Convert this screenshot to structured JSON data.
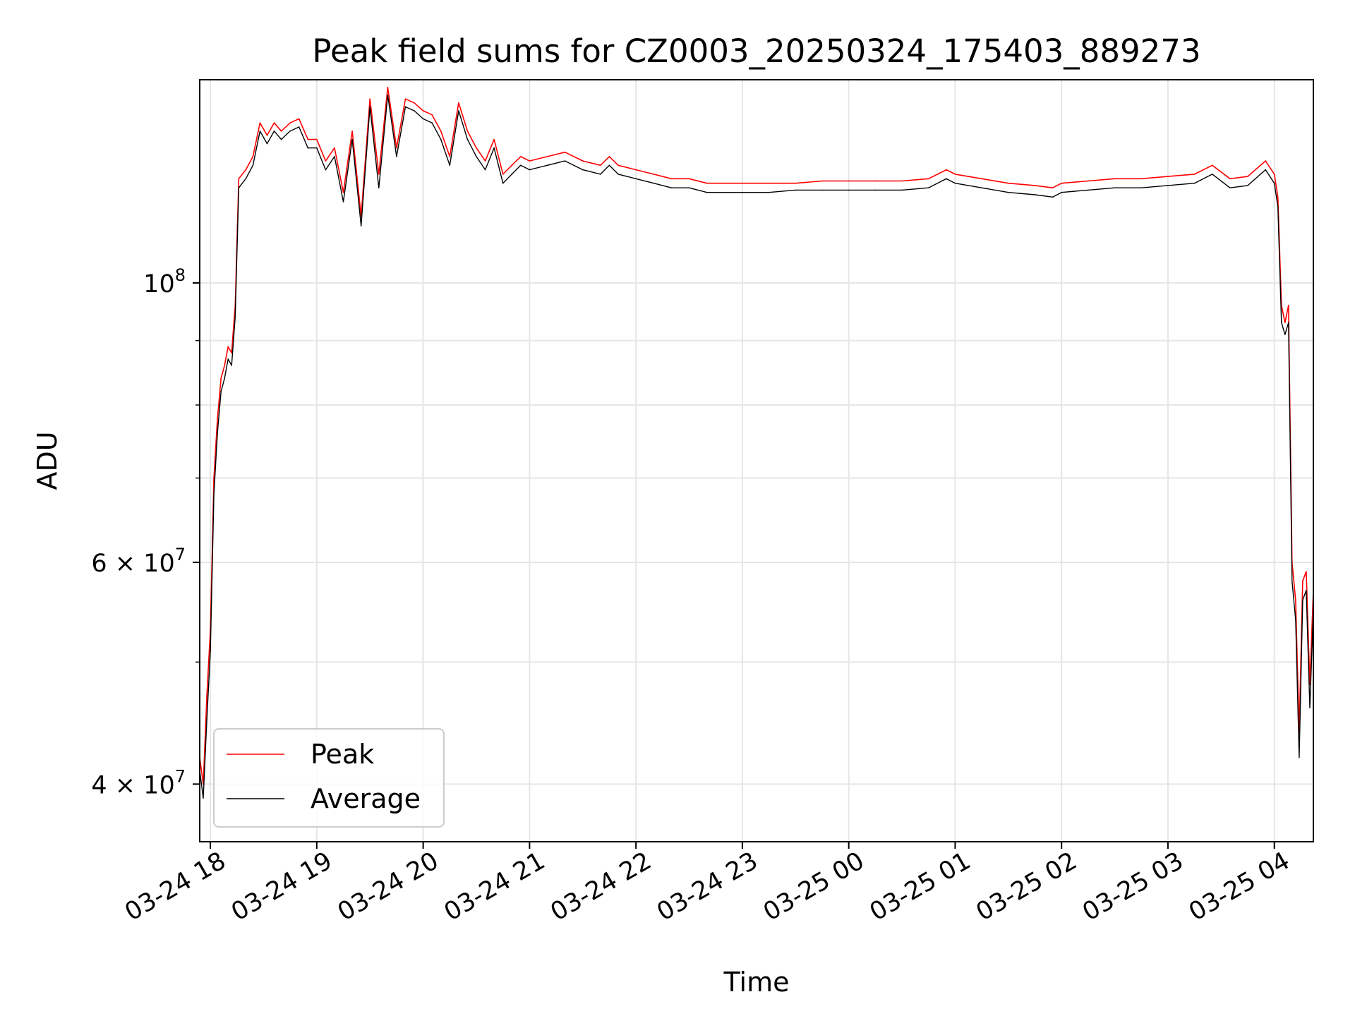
{
  "chart_data": {
    "type": "line",
    "title": "Peak field sums for CZ0003_20250324_175403_889273",
    "xlabel": "Time",
    "ylabel": "ADU",
    "yscale": "log",
    "ylim": [
      36000000,
      145000000
    ],
    "xlim": [
      "2025-03-24 17:54",
      "2025-03-25 04:22"
    ],
    "grid": true,
    "legend_position": "lower-left",
    "x_ticks": [
      {
        "time": "2025-03-24 18:00",
        "label": "03-24 18"
      },
      {
        "time": "2025-03-24 19:00",
        "label": "03-24 19"
      },
      {
        "time": "2025-03-24 20:00",
        "label": "03-24 20"
      },
      {
        "time": "2025-03-24 21:00",
        "label": "03-24 21"
      },
      {
        "time": "2025-03-24 22:00",
        "label": "03-24 22"
      },
      {
        "time": "2025-03-24 23:00",
        "label": "03-24 23"
      },
      {
        "time": "2025-03-25 00:00",
        "label": "03-25 00"
      },
      {
        "time": "2025-03-25 01:00",
        "label": "03-25 01"
      },
      {
        "time": "2025-03-25 02:00",
        "label": "03-25 02"
      },
      {
        "time": "2025-03-25 03:00",
        "label": "03-25 03"
      },
      {
        "time": "2025-03-25 04:00",
        "label": "03-25 04"
      }
    ],
    "y_ticks": [
      {
        "value": 40000000,
        "mantissa": "4",
        "exponent": "7",
        "times": "×",
        "base": "10"
      },
      {
        "value": 60000000,
        "mantissa": "6",
        "exponent": "7",
        "times": "×",
        "base": "10"
      },
      {
        "value": 100000000,
        "mantissa": "",
        "exponent": "8",
        "times": "",
        "base": "10"
      }
    ],
    "y_minor_ticks": [
      50000000,
      70000000,
      80000000,
      90000000
    ],
    "series": [
      {
        "name": "Peak",
        "color": "#ff0000",
        "points": [
          [
            "2025-03-24 17:54",
            42000000
          ],
          [
            "2025-03-24 17:56",
            40000000
          ],
          [
            "2025-03-24 17:58",
            47000000
          ],
          [
            "2025-03-24 18:00",
            53000000
          ],
          [
            "2025-03-24 18:02",
            70000000
          ],
          [
            "2025-03-24 18:04",
            78000000
          ],
          [
            "2025-03-24 18:06",
            84000000
          ],
          [
            "2025-03-24 18:08",
            86000000
          ],
          [
            "2025-03-24 18:10",
            89000000
          ],
          [
            "2025-03-24 18:12",
            88000000
          ],
          [
            "2025-03-24 18:14",
            96000000
          ],
          [
            "2025-03-24 18:16",
            121000000
          ],
          [
            "2025-03-24 18:20",
            123000000
          ],
          [
            "2025-03-24 18:24",
            126000000
          ],
          [
            "2025-03-24 18:28",
            134000000
          ],
          [
            "2025-03-24 18:32",
            131000000
          ],
          [
            "2025-03-24 18:36",
            134000000
          ],
          [
            "2025-03-24 18:40",
            132000000
          ],
          [
            "2025-03-24 18:45",
            134000000
          ],
          [
            "2025-03-24 18:50",
            135000000
          ],
          [
            "2025-03-24 18:55",
            130000000
          ],
          [
            "2025-03-24 19:00",
            130000000
          ],
          [
            "2025-03-24 19:05",
            125000000
          ],
          [
            "2025-03-24 19:10",
            128000000
          ],
          [
            "2025-03-24 19:15",
            118000000
          ],
          [
            "2025-03-24 19:20",
            132000000
          ],
          [
            "2025-03-24 19:25",
            113000000
          ],
          [
            "2025-03-24 19:30",
            140000000
          ],
          [
            "2025-03-24 19:35",
            122000000
          ],
          [
            "2025-03-24 19:40",
            143000000
          ],
          [
            "2025-03-24 19:45",
            128000000
          ],
          [
            "2025-03-24 19:50",
            140000000
          ],
          [
            "2025-03-24 19:55",
            139000000
          ],
          [
            "2025-03-24 20:00",
            137000000
          ],
          [
            "2025-03-24 20:05",
            136000000
          ],
          [
            "2025-03-24 20:10",
            132000000
          ],
          [
            "2025-03-24 20:15",
            126000000
          ],
          [
            "2025-03-24 20:20",
            139000000
          ],
          [
            "2025-03-24 20:25",
            132000000
          ],
          [
            "2025-03-24 20:30",
            128000000
          ],
          [
            "2025-03-24 20:35",
            125000000
          ],
          [
            "2025-03-24 20:40",
            130000000
          ],
          [
            "2025-03-24 20:45",
            122000000
          ],
          [
            "2025-03-24 20:50",
            124000000
          ],
          [
            "2025-03-24 20:55",
            126000000
          ],
          [
            "2025-03-24 21:00",
            125000000
          ],
          [
            "2025-03-24 21:10",
            126000000
          ],
          [
            "2025-03-24 21:20",
            127000000
          ],
          [
            "2025-03-24 21:30",
            125000000
          ],
          [
            "2025-03-24 21:40",
            124000000
          ],
          [
            "2025-03-24 21:45",
            126000000
          ],
          [
            "2025-03-24 21:50",
            124000000
          ],
          [
            "2025-03-24 22:00",
            123000000
          ],
          [
            "2025-03-24 22:10",
            122000000
          ],
          [
            "2025-03-24 22:20",
            121000000
          ],
          [
            "2025-03-24 22:30",
            121000000
          ],
          [
            "2025-03-24 22:40",
            120000000
          ],
          [
            "2025-03-24 22:50",
            120000000
          ],
          [
            "2025-03-24 23:00",
            120000000
          ],
          [
            "2025-03-24 23:15",
            120000000
          ],
          [
            "2025-03-24 23:30",
            120000000
          ],
          [
            "2025-03-24 23:45",
            120500000
          ],
          [
            "2025-03-25 00:00",
            120500000
          ],
          [
            "2025-03-25 00:15",
            120500000
          ],
          [
            "2025-03-25 00:30",
            120500000
          ],
          [
            "2025-03-25 00:45",
            121000000
          ],
          [
            "2025-03-25 00:55",
            123000000
          ],
          [
            "2025-03-25 01:00",
            122000000
          ],
          [
            "2025-03-25 01:15",
            121000000
          ],
          [
            "2025-03-25 01:30",
            120000000
          ],
          [
            "2025-03-25 01:45",
            119500000
          ],
          [
            "2025-03-25 01:55",
            119000000
          ],
          [
            "2025-03-25 02:00",
            120000000
          ],
          [
            "2025-03-25 02:15",
            120500000
          ],
          [
            "2025-03-25 02:30",
            121000000
          ],
          [
            "2025-03-25 02:45",
            121000000
          ],
          [
            "2025-03-25 03:00",
            121500000
          ],
          [
            "2025-03-25 03:15",
            122000000
          ],
          [
            "2025-03-25 03:25",
            124000000
          ],
          [
            "2025-03-25 03:35",
            121000000
          ],
          [
            "2025-03-25 03:45",
            121500000
          ],
          [
            "2025-03-25 03:55",
            125000000
          ],
          [
            "2025-03-25 04:00",
            122000000
          ],
          [
            "2025-03-25 04:02",
            117000000
          ],
          [
            "2025-03-25 04:04",
            96000000
          ],
          [
            "2025-03-25 04:06",
            93000000
          ],
          [
            "2025-03-25 04:08",
            96000000
          ],
          [
            "2025-03-25 04:10",
            60000000
          ],
          [
            "2025-03-25 04:12",
            56000000
          ],
          [
            "2025-03-25 04:14",
            44000000
          ],
          [
            "2025-03-25 04:16",
            58000000
          ],
          [
            "2025-03-25 04:18",
            59000000
          ],
          [
            "2025-03-25 04:20",
            48000000
          ],
          [
            "2025-03-25 04:22",
            57000000
          ]
        ]
      },
      {
        "name": "Average",
        "color": "#000000",
        "points": [
          [
            "2025-03-24 17:54",
            41000000
          ],
          [
            "2025-03-24 17:56",
            39000000
          ],
          [
            "2025-03-24 17:58",
            45000000
          ],
          [
            "2025-03-24 18:00",
            51000000
          ],
          [
            "2025-03-24 18:02",
            68000000
          ],
          [
            "2025-03-24 18:04",
            76000000
          ],
          [
            "2025-03-24 18:06",
            82000000
          ],
          [
            "2025-03-24 18:08",
            84000000
          ],
          [
            "2025-03-24 18:10",
            87000000
          ],
          [
            "2025-03-24 18:12",
            86000000
          ],
          [
            "2025-03-24 18:14",
            94000000
          ],
          [
            "2025-03-24 18:16",
            119000000
          ],
          [
            "2025-03-24 18:20",
            121000000
          ],
          [
            "2025-03-24 18:24",
            124000000
          ],
          [
            "2025-03-24 18:28",
            132000000
          ],
          [
            "2025-03-24 18:32",
            129000000
          ],
          [
            "2025-03-24 18:36",
            132000000
          ],
          [
            "2025-03-24 18:40",
            130000000
          ],
          [
            "2025-03-24 18:45",
            132000000
          ],
          [
            "2025-03-24 18:50",
            133000000
          ],
          [
            "2025-03-24 18:55",
            128000000
          ],
          [
            "2025-03-24 19:00",
            128000000
          ],
          [
            "2025-03-24 19:05",
            123000000
          ],
          [
            "2025-03-24 19:10",
            126000000
          ],
          [
            "2025-03-24 19:15",
            116000000
          ],
          [
            "2025-03-24 19:20",
            130000000
          ],
          [
            "2025-03-24 19:25",
            111000000
          ],
          [
            "2025-03-24 19:30",
            138000000
          ],
          [
            "2025-03-24 19:35",
            119000000
          ],
          [
            "2025-03-24 19:40",
            141000000
          ],
          [
            "2025-03-24 19:45",
            126000000
          ],
          [
            "2025-03-24 19:50",
            138000000
          ],
          [
            "2025-03-24 19:55",
            137000000
          ],
          [
            "2025-03-24 20:00",
            135000000
          ],
          [
            "2025-03-24 20:05",
            134000000
          ],
          [
            "2025-03-24 20:10",
            130000000
          ],
          [
            "2025-03-24 20:15",
            124000000
          ],
          [
            "2025-03-24 20:20",
            137000000
          ],
          [
            "2025-03-24 20:25",
            130000000
          ],
          [
            "2025-03-24 20:30",
            126000000
          ],
          [
            "2025-03-24 20:35",
            123000000
          ],
          [
            "2025-03-24 20:40",
            128000000
          ],
          [
            "2025-03-24 20:45",
            120000000
          ],
          [
            "2025-03-24 20:50",
            122000000
          ],
          [
            "2025-03-24 20:55",
            124000000
          ],
          [
            "2025-03-24 21:00",
            123000000
          ],
          [
            "2025-03-24 21:10",
            124000000
          ],
          [
            "2025-03-24 21:20",
            125000000
          ],
          [
            "2025-03-24 21:30",
            123000000
          ],
          [
            "2025-03-24 21:40",
            122000000
          ],
          [
            "2025-03-24 21:45",
            124000000
          ],
          [
            "2025-03-24 21:50",
            122000000
          ],
          [
            "2025-03-24 22:00",
            121000000
          ],
          [
            "2025-03-24 22:10",
            120000000
          ],
          [
            "2025-03-24 22:20",
            119000000
          ],
          [
            "2025-03-24 22:30",
            119000000
          ],
          [
            "2025-03-24 22:40",
            118000000
          ],
          [
            "2025-03-24 22:50",
            118000000
          ],
          [
            "2025-03-24 23:00",
            118000000
          ],
          [
            "2025-03-24 23:15",
            118000000
          ],
          [
            "2025-03-24 23:30",
            118500000
          ],
          [
            "2025-03-24 23:45",
            118500000
          ],
          [
            "2025-03-25 00:00",
            118500000
          ],
          [
            "2025-03-25 00:15",
            118500000
          ],
          [
            "2025-03-25 00:30",
            118500000
          ],
          [
            "2025-03-25 00:45",
            119000000
          ],
          [
            "2025-03-25 00:55",
            121000000
          ],
          [
            "2025-03-25 01:00",
            120000000
          ],
          [
            "2025-03-25 01:15",
            119000000
          ],
          [
            "2025-03-25 01:30",
            118000000
          ],
          [
            "2025-03-25 01:45",
            117500000
          ],
          [
            "2025-03-25 01:55",
            117000000
          ],
          [
            "2025-03-25 02:00",
            118000000
          ],
          [
            "2025-03-25 02:15",
            118500000
          ],
          [
            "2025-03-25 02:30",
            119000000
          ],
          [
            "2025-03-25 02:45",
            119000000
          ],
          [
            "2025-03-25 03:00",
            119500000
          ],
          [
            "2025-03-25 03:15",
            120000000
          ],
          [
            "2025-03-25 03:25",
            122000000
          ],
          [
            "2025-03-25 03:35",
            119000000
          ],
          [
            "2025-03-25 03:45",
            119500000
          ],
          [
            "2025-03-25 03:55",
            123000000
          ],
          [
            "2025-03-25 04:00",
            120000000
          ],
          [
            "2025-03-25 04:02",
            115000000
          ],
          [
            "2025-03-25 04:04",
            93000000
          ],
          [
            "2025-03-25 04:06",
            91000000
          ],
          [
            "2025-03-25 04:08",
            93000000
          ],
          [
            "2025-03-25 04:10",
            58000000
          ],
          [
            "2025-03-25 04:12",
            54000000
          ],
          [
            "2025-03-25 04:14",
            42000000
          ],
          [
            "2025-03-25 04:16",
            56000000
          ],
          [
            "2025-03-25 04:18",
            57000000
          ],
          [
            "2025-03-25 04:20",
            46000000
          ],
          [
            "2025-03-25 04:22",
            55000000
          ]
        ]
      }
    ]
  }
}
